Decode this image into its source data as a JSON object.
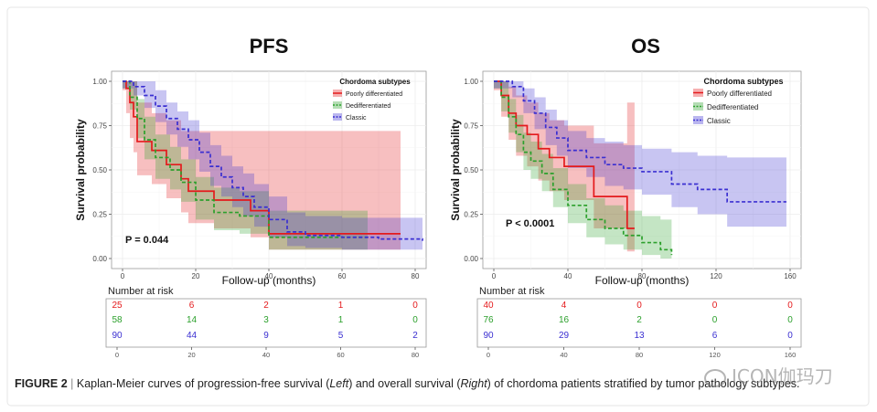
{
  "figure": {
    "caption_label": "FIGURE 2",
    "caption_sep": " | ",
    "caption_parts": [
      "Kaplan-Meier curves of progression-free survival (",
      "Left",
      ") and overall survival (",
      "Right",
      ") of chordoma patients stratified by tumor pathology subtypes."
    ],
    "watermark": "ICON伽玛刀"
  },
  "chart_data": [
    {
      "type": "line",
      "subtype": "kaplan-meier",
      "title": "PFS",
      "xlabel": "Follow-up (months)",
      "ylabel": "Survival probability",
      "xlim": [
        0,
        80
      ],
      "ylim": [
        0,
        1
      ],
      "xticks": [
        0,
        20,
        40,
        60,
        80
      ],
      "yticks": [
        "0.00",
        "0.25",
        "0.50",
        "0.75",
        "1.00"
      ],
      "grid": true,
      "legend_title": "Chordoma subtypes",
      "legend_position": "top-right",
      "pvalue": "P = 0.044",
      "series": [
        {
          "name": "Poorly differentiated",
          "color": "#e41a1c",
          "dash": false,
          "x": [
            0,
            1,
            2,
            3,
            4,
            8,
            12,
            16,
            18,
            25,
            35,
            40,
            65,
            76
          ],
          "y": [
            1.0,
            0.96,
            0.88,
            0.8,
            0.66,
            0.61,
            0.53,
            0.45,
            0.38,
            0.33,
            0.27,
            0.14,
            0.14,
            0.14
          ],
          "band_upper": [
            1.0,
            1.0,
            1.0,
            1.0,
            0.88,
            0.82,
            0.78,
            0.72,
            0.72,
            0.72,
            0.72,
            0.72,
            0.72,
            0.72
          ],
          "band_lower": [
            0.95,
            0.82,
            0.68,
            0.6,
            0.47,
            0.42,
            0.34,
            0.26,
            0.2,
            0.17,
            0.12,
            0.05,
            0.05,
            0.05
          ]
        },
        {
          "name": "Dedifferentiated",
          "color": "#2ca02c",
          "dash": true,
          "x": [
            0,
            2,
            4,
            6,
            9,
            13,
            16,
            20,
            25,
            32,
            40,
            50,
            60,
            67
          ],
          "y": [
            1.0,
            0.91,
            0.79,
            0.67,
            0.57,
            0.5,
            0.43,
            0.33,
            0.26,
            0.24,
            0.12,
            0.12,
            0.12,
            0.12
          ],
          "band_upper": [
            1.0,
            1.0,
            0.9,
            0.8,
            0.7,
            0.63,
            0.56,
            0.46,
            0.4,
            0.38,
            0.27,
            0.27,
            0.27,
            0.27
          ],
          "band_lower": [
            0.96,
            0.84,
            0.68,
            0.56,
            0.45,
            0.39,
            0.32,
            0.22,
            0.16,
            0.14,
            0.05,
            0.05,
            0.05,
            0.05
          ]
        },
        {
          "name": "Classic",
          "color": "#3a2fd1",
          "dash": true,
          "x": [
            0,
            3,
            6,
            9,
            12,
            15,
            18,
            21,
            24,
            27,
            30,
            33,
            36,
            40,
            45,
            50,
            60,
            70,
            82
          ],
          "y": [
            1.0,
            0.97,
            0.92,
            0.86,
            0.79,
            0.73,
            0.67,
            0.6,
            0.52,
            0.46,
            0.4,
            0.35,
            0.29,
            0.22,
            0.15,
            0.13,
            0.12,
            0.11,
            0.1
          ],
          "band_upper": [
            1.0,
            1.0,
            1.0,
            0.95,
            0.88,
            0.83,
            0.78,
            0.71,
            0.64,
            0.58,
            0.52,
            0.48,
            0.42,
            0.35,
            0.26,
            0.24,
            0.23,
            0.23,
            0.23
          ],
          "band_lower": [
            0.96,
            0.92,
            0.85,
            0.77,
            0.7,
            0.63,
            0.56,
            0.49,
            0.41,
            0.35,
            0.29,
            0.24,
            0.18,
            0.12,
            0.07,
            0.06,
            0.05,
            0.05,
            0.05
          ]
        }
      ],
      "risk_table": {
        "title": "Number at risk",
        "times": [
          0,
          20,
          40,
          60,
          80
        ],
        "rows": [
          {
            "color": "#e41a1c",
            "counts": [
              25,
              6,
              2,
              1,
              0
            ]
          },
          {
            "color": "#2ca02c",
            "counts": [
              58,
              14,
              3,
              1,
              0
            ]
          },
          {
            "color": "#3a2fd1",
            "counts": [
              90,
              44,
              9,
              5,
              2
            ]
          }
        ]
      }
    },
    {
      "type": "line",
      "subtype": "kaplan-meier",
      "title": "OS",
      "xlabel": "Follow-up (months)",
      "ylabel": "Survival probability",
      "xlim": [
        0,
        160
      ],
      "ylim": [
        0,
        1
      ],
      "xticks": [
        0,
        40,
        80,
        120,
        160
      ],
      "yticks": [
        "0.00",
        "0.25",
        "0.50",
        "0.75",
        "1.00"
      ],
      "grid": true,
      "legend_title": "Chordoma subtypes",
      "legend_position": "top-right",
      "pvalue": "P < 0.0001",
      "series": [
        {
          "name": "Poorly differentiated",
          "color": "#e41a1c",
          "dash": false,
          "x": [
            0,
            4,
            8,
            12,
            18,
            24,
            30,
            38,
            54,
            72,
            76
          ],
          "y": [
            1.0,
            0.92,
            0.82,
            0.75,
            0.7,
            0.62,
            0.57,
            0.52,
            0.35,
            0.17,
            0.17
          ],
          "band_upper": [
            1.0,
            1.0,
            0.97,
            0.92,
            0.88,
            0.82,
            0.78,
            0.75,
            0.65,
            0.88,
            0.88
          ],
          "band_lower": [
            0.95,
            0.8,
            0.67,
            0.58,
            0.52,
            0.44,
            0.38,
            0.33,
            0.17,
            0.04,
            0.04
          ]
        },
        {
          "name": "Dedifferentiated",
          "color": "#2ca02c",
          "dash": true,
          "x": [
            0,
            4,
            8,
            12,
            16,
            20,
            26,
            32,
            40,
            50,
            60,
            70,
            80,
            90,
            96
          ],
          "y": [
            1.0,
            0.91,
            0.8,
            0.7,
            0.6,
            0.55,
            0.48,
            0.39,
            0.3,
            0.22,
            0.17,
            0.13,
            0.09,
            0.05,
            0.02
          ],
          "band_upper": [
            1.0,
            1.0,
            0.9,
            0.81,
            0.71,
            0.66,
            0.59,
            0.51,
            0.42,
            0.34,
            0.3,
            0.27,
            0.24,
            0.22,
            0.22
          ],
          "band_lower": [
            0.96,
            0.83,
            0.71,
            0.6,
            0.5,
            0.45,
            0.38,
            0.29,
            0.2,
            0.12,
            0.08,
            0.05,
            0.02,
            0.0,
            0.0
          ]
        },
        {
          "name": "Classic",
          "color": "#3a2fd1",
          "dash": true,
          "x": [
            0,
            10,
            16,
            22,
            28,
            34,
            40,
            50,
            60,
            70,
            80,
            96,
            110,
            126,
            150,
            158
          ],
          "y": [
            1.0,
            0.97,
            0.89,
            0.82,
            0.74,
            0.68,
            0.61,
            0.57,
            0.53,
            0.51,
            0.49,
            0.42,
            0.39,
            0.32,
            0.32,
            0.32
          ],
          "band_upper": [
            1.0,
            1.0,
            0.96,
            0.91,
            0.84,
            0.78,
            0.72,
            0.68,
            0.66,
            0.64,
            0.62,
            0.6,
            0.58,
            0.57,
            0.57,
            0.57
          ],
          "band_lower": [
            0.96,
            0.91,
            0.82,
            0.73,
            0.64,
            0.58,
            0.51,
            0.46,
            0.41,
            0.39,
            0.36,
            0.29,
            0.25,
            0.18,
            0.18,
            0.18
          ]
        }
      ],
      "risk_table": {
        "title": "Number at risk",
        "times": [
          0,
          40,
          80,
          120,
          160
        ],
        "rows": [
          {
            "color": "#e41a1c",
            "counts": [
              40,
              4,
              0,
              0,
              0
            ]
          },
          {
            "color": "#2ca02c",
            "counts": [
              76,
              16,
              2,
              0,
              0
            ]
          },
          {
            "color": "#3a2fd1",
            "counts": [
              90,
              29,
              13,
              6,
              0
            ]
          }
        ]
      }
    }
  ]
}
